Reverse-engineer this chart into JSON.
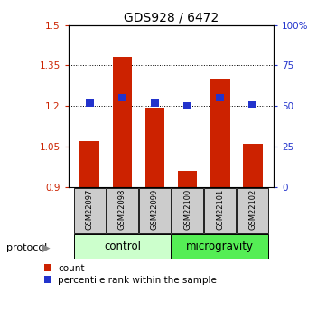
{
  "title": "GDS928 / 6472",
  "samples": [
    "GSM22097",
    "GSM22098",
    "GSM22099",
    "GSM22100",
    "GSM22101",
    "GSM22102"
  ],
  "red_values": [
    1.07,
    1.38,
    1.195,
    0.96,
    1.3,
    1.06
  ],
  "blue_values": [
    52,
    55,
    52,
    50,
    55,
    51
  ],
  "ylim_left": [
    0.9,
    1.5
  ],
  "ylim_right": [
    0,
    100
  ],
  "yticks_left": [
    0.9,
    1.05,
    1.2,
    1.35,
    1.5
  ],
  "yticks_right": [
    0,
    25,
    50,
    75,
    100
  ],
  "ytick_labels_left": [
    "0.9",
    "1.05",
    "1.2",
    "1.35",
    "1.5"
  ],
  "ytick_labels_right": [
    "0",
    "25",
    "50",
    "75",
    "100%"
  ],
  "bar_color": "#cc2200",
  "square_color": "#2233cc",
  "control_color": "#ccffcc",
  "microgravity_color": "#55ee55",
  "sample_box_color": "#cccccc",
  "legend_labels": [
    "count",
    "percentile rank within the sample"
  ],
  "bar_width": 0.6
}
